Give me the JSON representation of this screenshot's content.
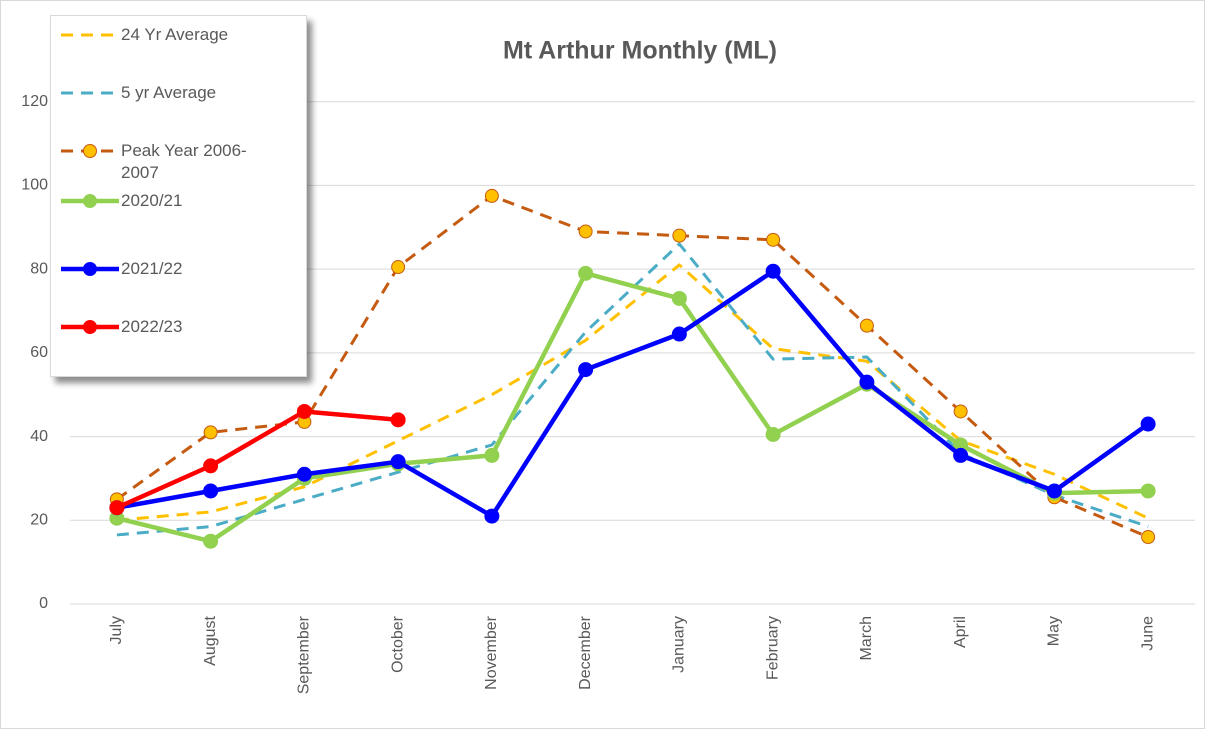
{
  "chart_data": {
    "type": "line",
    "title": "Mt Arthur Monthly (ML)",
    "categories": [
      "July",
      "August",
      "September",
      "October",
      "November",
      "December",
      "January",
      "February",
      "March",
      "April",
      "May",
      "June"
    ],
    "ylim": [
      0,
      140
    ],
    "yticks": [
      0,
      20,
      40,
      60,
      80,
      100,
      120
    ],
    "grid": true,
    "legend": "top-left",
    "series": [
      {
        "name": "24 Yr Average",
        "color": "#ffc000",
        "dashed": true,
        "values": [
          20,
          22,
          28,
          39,
          50,
          63,
          81,
          61,
          58,
          39,
          31,
          20.5
        ]
      },
      {
        "name": "5 yr Average",
        "color": "#4bacc6",
        "dashed": true,
        "values": [
          16.5,
          18.5,
          25,
          31.5,
          38,
          65,
          86,
          58.5,
          59,
          36,
          26,
          18.5
        ]
      },
      {
        "name": "Peak Year 2006-2007",
        "color": "#c55a11",
        "dashed": true,
        "marker_fill": "#ffc000",
        "values": [
          25,
          41,
          43.5,
          80.5,
          97.5,
          89,
          88,
          87,
          66.5,
          46,
          25.5,
          16
        ]
      },
      {
        "name": "2020/21",
        "color": "#92d050",
        "dashed": false,
        "marker_fill": "#92d050",
        "values": [
          20.5,
          15,
          30,
          33.5,
          35.5,
          79,
          73,
          40.5,
          52.5,
          38,
          26.5,
          27
        ]
      },
      {
        "name": "2021/22",
        "color": "#0000ff",
        "dashed": false,
        "marker_fill": "#0000ff",
        "values": [
          23,
          27,
          31,
          34,
          21,
          56,
          64.5,
          79.5,
          53,
          35.5,
          27,
          43
        ]
      },
      {
        "name": "2022/23",
        "color": "#ff0000",
        "dashed": false,
        "marker_fill": "#ff0000",
        "values": [
          23,
          33,
          46,
          44,
          null,
          null,
          null,
          null,
          null,
          null,
          null,
          null
        ]
      }
    ]
  }
}
